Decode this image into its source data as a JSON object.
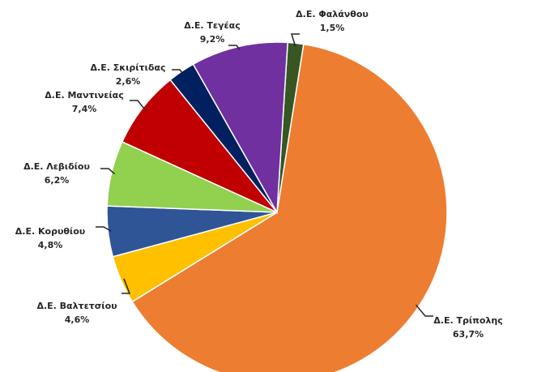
{
  "chart_data": {
    "type": "pie",
    "categories": [
      "Δ.Ε. Φαλάνθου",
      "Δ.Ε. Τρίπολης",
      "Δ.Ε. Βαλτετσίου",
      "Δ.Ε. Κορυθίου",
      "Δ.Ε. Λεβιδίου",
      "Δ.Ε. Μαντινείας",
      "Δ.Ε. Σκιρίτιδας",
      "Δ.Ε. Τεγέας"
    ],
    "values": [
      1.5,
      63.7,
      4.6,
      4.8,
      6.2,
      7.4,
      2.6,
      9.2
    ],
    "value_labels": [
      "1,5%",
      "63,7%",
      "4,6%",
      "4,8%",
      "6,2%",
      "7,4%",
      "2,6%",
      "9,2%"
    ],
    "colors": [
      "#375623",
      "#ed7d31",
      "#ffc000",
      "#2f5597",
      "#92d050",
      "#c00000",
      "#002060",
      "#7030a0"
    ]
  }
}
